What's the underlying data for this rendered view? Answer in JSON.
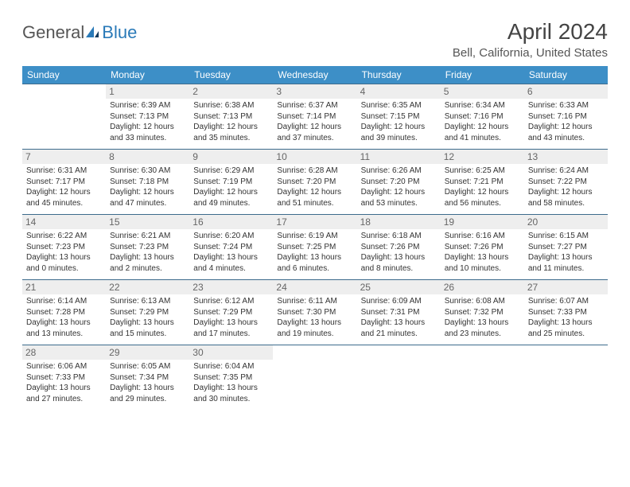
{
  "logo": {
    "left": "General",
    "right": "Blue"
  },
  "title": "April 2024",
  "location": "Bell, California, United States",
  "headers": [
    "Sunday",
    "Monday",
    "Tuesday",
    "Wednesday",
    "Thursday",
    "Friday",
    "Saturday"
  ],
  "colors": {
    "header_bg": "#3d8fc7",
    "header_text": "#ffffff",
    "row_border": "#3d6b8c",
    "daynum_bg": "#eeeeee",
    "logo_gray": "#555555",
    "logo_blue": "#2a7ab8"
  },
  "fonts": {
    "title_size": 28,
    "location_size": 15,
    "header_size": 12,
    "daynum_size": 12,
    "dayinfo_size": 10
  },
  "weeks": [
    [
      {
        "num": "",
        "sunrise": "",
        "sunset": "",
        "daylight1": "",
        "daylight2": ""
      },
      {
        "num": "1",
        "sunrise": "Sunrise: 6:39 AM",
        "sunset": "Sunset: 7:13 PM",
        "daylight1": "Daylight: 12 hours",
        "daylight2": "and 33 minutes."
      },
      {
        "num": "2",
        "sunrise": "Sunrise: 6:38 AM",
        "sunset": "Sunset: 7:13 PM",
        "daylight1": "Daylight: 12 hours",
        "daylight2": "and 35 minutes."
      },
      {
        "num": "3",
        "sunrise": "Sunrise: 6:37 AM",
        "sunset": "Sunset: 7:14 PM",
        "daylight1": "Daylight: 12 hours",
        "daylight2": "and 37 minutes."
      },
      {
        "num": "4",
        "sunrise": "Sunrise: 6:35 AM",
        "sunset": "Sunset: 7:15 PM",
        "daylight1": "Daylight: 12 hours",
        "daylight2": "and 39 minutes."
      },
      {
        "num": "5",
        "sunrise": "Sunrise: 6:34 AM",
        "sunset": "Sunset: 7:16 PM",
        "daylight1": "Daylight: 12 hours",
        "daylight2": "and 41 minutes."
      },
      {
        "num": "6",
        "sunrise": "Sunrise: 6:33 AM",
        "sunset": "Sunset: 7:16 PM",
        "daylight1": "Daylight: 12 hours",
        "daylight2": "and 43 minutes."
      }
    ],
    [
      {
        "num": "7",
        "sunrise": "Sunrise: 6:31 AM",
        "sunset": "Sunset: 7:17 PM",
        "daylight1": "Daylight: 12 hours",
        "daylight2": "and 45 minutes."
      },
      {
        "num": "8",
        "sunrise": "Sunrise: 6:30 AM",
        "sunset": "Sunset: 7:18 PM",
        "daylight1": "Daylight: 12 hours",
        "daylight2": "and 47 minutes."
      },
      {
        "num": "9",
        "sunrise": "Sunrise: 6:29 AM",
        "sunset": "Sunset: 7:19 PM",
        "daylight1": "Daylight: 12 hours",
        "daylight2": "and 49 minutes."
      },
      {
        "num": "10",
        "sunrise": "Sunrise: 6:28 AM",
        "sunset": "Sunset: 7:20 PM",
        "daylight1": "Daylight: 12 hours",
        "daylight2": "and 51 minutes."
      },
      {
        "num": "11",
        "sunrise": "Sunrise: 6:26 AM",
        "sunset": "Sunset: 7:20 PM",
        "daylight1": "Daylight: 12 hours",
        "daylight2": "and 53 minutes."
      },
      {
        "num": "12",
        "sunrise": "Sunrise: 6:25 AM",
        "sunset": "Sunset: 7:21 PM",
        "daylight1": "Daylight: 12 hours",
        "daylight2": "and 56 minutes."
      },
      {
        "num": "13",
        "sunrise": "Sunrise: 6:24 AM",
        "sunset": "Sunset: 7:22 PM",
        "daylight1": "Daylight: 12 hours",
        "daylight2": "and 58 minutes."
      }
    ],
    [
      {
        "num": "14",
        "sunrise": "Sunrise: 6:22 AM",
        "sunset": "Sunset: 7:23 PM",
        "daylight1": "Daylight: 13 hours",
        "daylight2": "and 0 minutes."
      },
      {
        "num": "15",
        "sunrise": "Sunrise: 6:21 AM",
        "sunset": "Sunset: 7:23 PM",
        "daylight1": "Daylight: 13 hours",
        "daylight2": "and 2 minutes."
      },
      {
        "num": "16",
        "sunrise": "Sunrise: 6:20 AM",
        "sunset": "Sunset: 7:24 PM",
        "daylight1": "Daylight: 13 hours",
        "daylight2": "and 4 minutes."
      },
      {
        "num": "17",
        "sunrise": "Sunrise: 6:19 AM",
        "sunset": "Sunset: 7:25 PM",
        "daylight1": "Daylight: 13 hours",
        "daylight2": "and 6 minutes."
      },
      {
        "num": "18",
        "sunrise": "Sunrise: 6:18 AM",
        "sunset": "Sunset: 7:26 PM",
        "daylight1": "Daylight: 13 hours",
        "daylight2": "and 8 minutes."
      },
      {
        "num": "19",
        "sunrise": "Sunrise: 6:16 AM",
        "sunset": "Sunset: 7:26 PM",
        "daylight1": "Daylight: 13 hours",
        "daylight2": "and 10 minutes."
      },
      {
        "num": "20",
        "sunrise": "Sunrise: 6:15 AM",
        "sunset": "Sunset: 7:27 PM",
        "daylight1": "Daylight: 13 hours",
        "daylight2": "and 11 minutes."
      }
    ],
    [
      {
        "num": "21",
        "sunrise": "Sunrise: 6:14 AM",
        "sunset": "Sunset: 7:28 PM",
        "daylight1": "Daylight: 13 hours",
        "daylight2": "and 13 minutes."
      },
      {
        "num": "22",
        "sunrise": "Sunrise: 6:13 AM",
        "sunset": "Sunset: 7:29 PM",
        "daylight1": "Daylight: 13 hours",
        "daylight2": "and 15 minutes."
      },
      {
        "num": "23",
        "sunrise": "Sunrise: 6:12 AM",
        "sunset": "Sunset: 7:29 PM",
        "daylight1": "Daylight: 13 hours",
        "daylight2": "and 17 minutes."
      },
      {
        "num": "24",
        "sunrise": "Sunrise: 6:11 AM",
        "sunset": "Sunset: 7:30 PM",
        "daylight1": "Daylight: 13 hours",
        "daylight2": "and 19 minutes."
      },
      {
        "num": "25",
        "sunrise": "Sunrise: 6:09 AM",
        "sunset": "Sunset: 7:31 PM",
        "daylight1": "Daylight: 13 hours",
        "daylight2": "and 21 minutes."
      },
      {
        "num": "26",
        "sunrise": "Sunrise: 6:08 AM",
        "sunset": "Sunset: 7:32 PM",
        "daylight1": "Daylight: 13 hours",
        "daylight2": "and 23 minutes."
      },
      {
        "num": "27",
        "sunrise": "Sunrise: 6:07 AM",
        "sunset": "Sunset: 7:33 PM",
        "daylight1": "Daylight: 13 hours",
        "daylight2": "and 25 minutes."
      }
    ],
    [
      {
        "num": "28",
        "sunrise": "Sunrise: 6:06 AM",
        "sunset": "Sunset: 7:33 PM",
        "daylight1": "Daylight: 13 hours",
        "daylight2": "and 27 minutes."
      },
      {
        "num": "29",
        "sunrise": "Sunrise: 6:05 AM",
        "sunset": "Sunset: 7:34 PM",
        "daylight1": "Daylight: 13 hours",
        "daylight2": "and 29 minutes."
      },
      {
        "num": "30",
        "sunrise": "Sunrise: 6:04 AM",
        "sunset": "Sunset: 7:35 PM",
        "daylight1": "Daylight: 13 hours",
        "daylight2": "and 30 minutes."
      },
      {
        "num": "",
        "sunrise": "",
        "sunset": "",
        "daylight1": "",
        "daylight2": ""
      },
      {
        "num": "",
        "sunrise": "",
        "sunset": "",
        "daylight1": "",
        "daylight2": ""
      },
      {
        "num": "",
        "sunrise": "",
        "sunset": "",
        "daylight1": "",
        "daylight2": ""
      },
      {
        "num": "",
        "sunrise": "",
        "sunset": "",
        "daylight1": "",
        "daylight2": ""
      }
    ]
  ]
}
